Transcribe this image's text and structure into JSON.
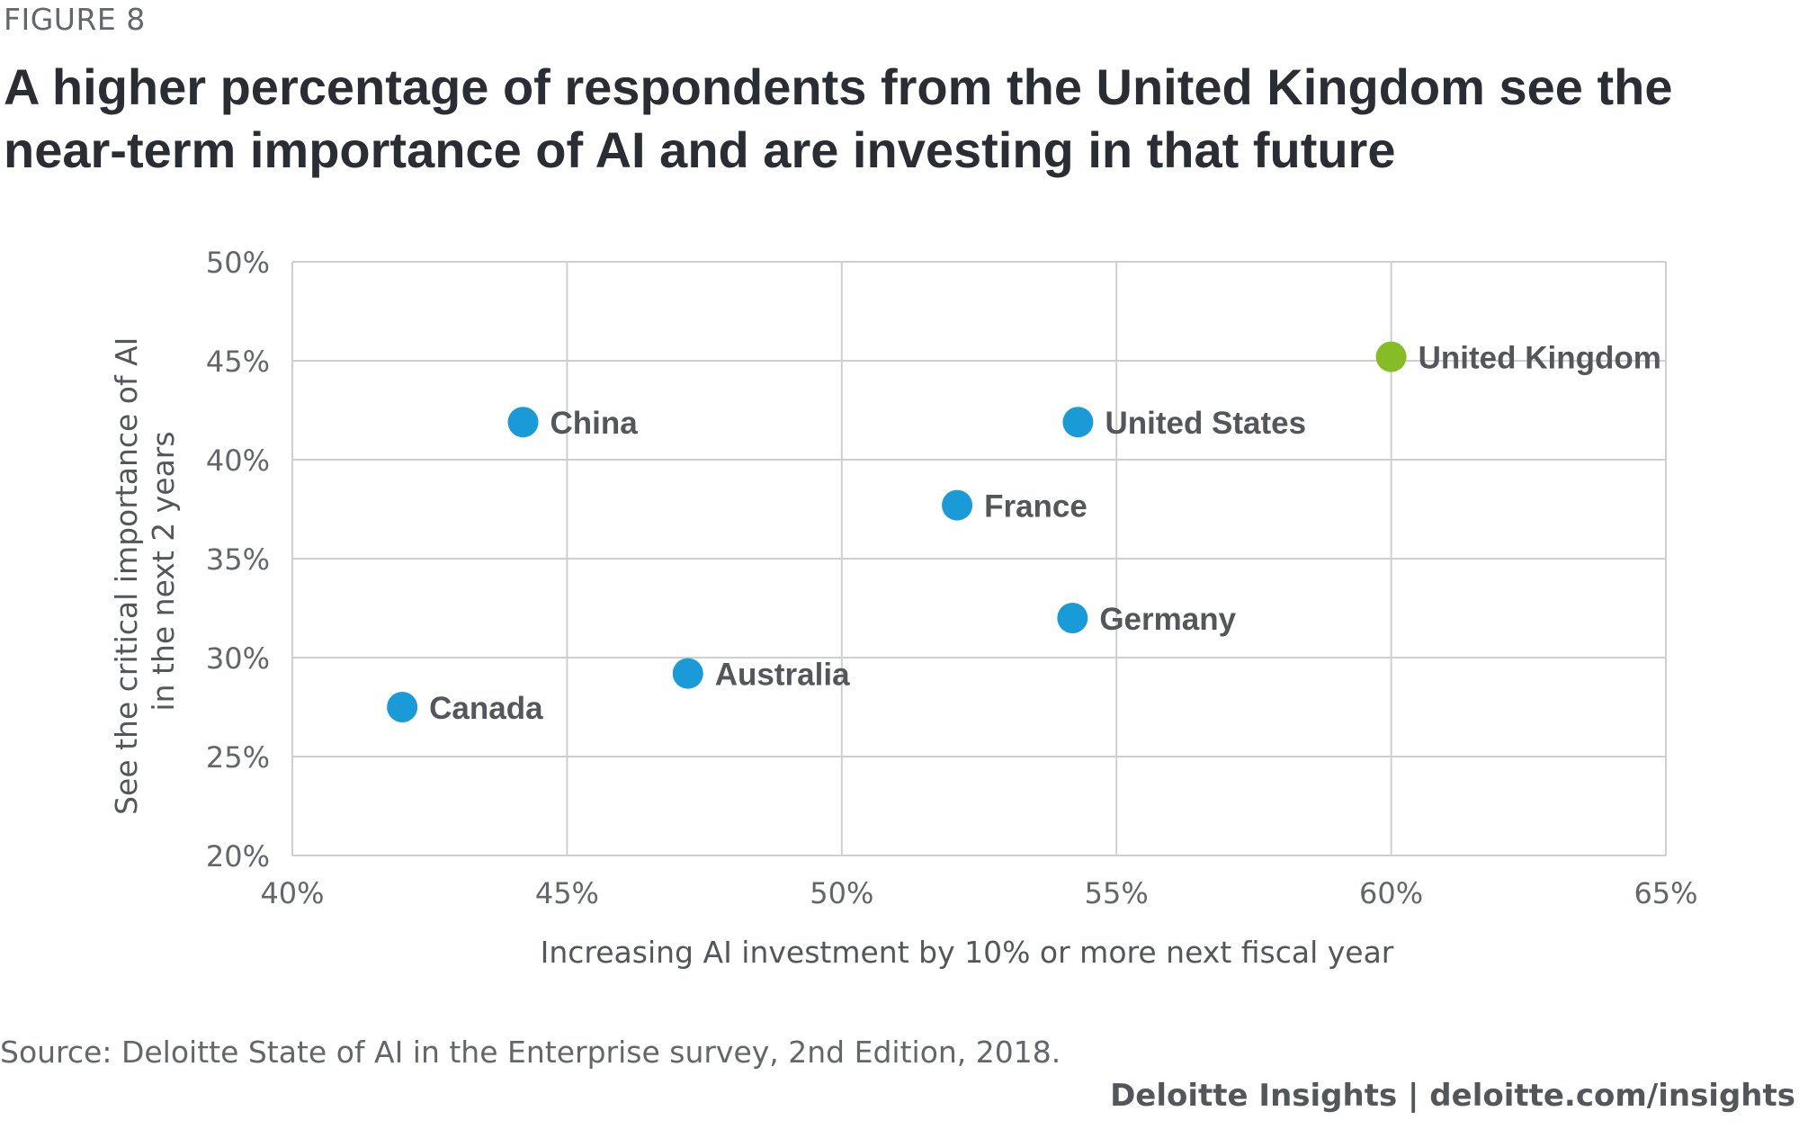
{
  "figure_label": "FIGURE 8",
  "title_lines": [
    "A higher percentage of respondents from the United Kingdom see the",
    "near-term importance of AI and are investing in that future"
  ],
  "source": "Source: Deloitte State of AI in the Enterprise survey, 2nd Edition, 2018.",
  "footer": "Deloitte Insights | deloitte.com/insights",
  "colors": {
    "point": "#1b9ad8",
    "highlight": "#86bc25",
    "grid": "#cfcfcf",
    "label": "#53565a",
    "tick": "#63666a",
    "title": "#2a2d33"
  },
  "chart_data": {
    "type": "scatter",
    "xlabel": "Increasing AI investment by 10% or more next fiscal year",
    "ylabel": [
      "See the critical importance of AI",
      "in the next 2 years"
    ],
    "xlim": [
      40,
      65
    ],
    "ylim": [
      20,
      50
    ],
    "xticks": [
      40,
      45,
      50,
      55,
      60,
      65
    ],
    "yticks": [
      20,
      25,
      30,
      35,
      40,
      45,
      50
    ],
    "tick_suffix": "%",
    "grid": true,
    "points": [
      {
        "label": "China",
        "x": 44.2,
        "y": 41.9,
        "highlight": false
      },
      {
        "label": "United States",
        "x": 54.3,
        "y": 41.9,
        "highlight": false
      },
      {
        "label": "United Kingdom",
        "x": 60.0,
        "y": 45.2,
        "highlight": true
      },
      {
        "label": "France",
        "x": 52.1,
        "y": 37.7,
        "highlight": false
      },
      {
        "label": "Germany",
        "x": 54.2,
        "y": 32.0,
        "highlight": false
      },
      {
        "label": "Australia",
        "x": 47.2,
        "y": 29.2,
        "highlight": false
      },
      {
        "label": "Canada",
        "x": 42.0,
        "y": 27.5,
        "highlight": false
      }
    ]
  }
}
